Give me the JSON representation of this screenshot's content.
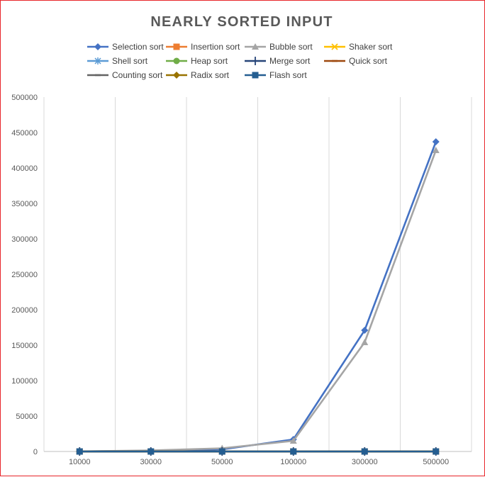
{
  "chart_data": {
    "type": "line",
    "title": "NEARLY SORTED INPUT",
    "xlabel": "",
    "ylabel": "",
    "categories": [
      "10000",
      "30000",
      "50000",
      "100000",
      "300000",
      "500000"
    ],
    "ylim": [
      0,
      500000
    ],
    "yticks": [
      0,
      50000,
      100000,
      150000,
      200000,
      250000,
      300000,
      350000,
      400000,
      450000,
      500000
    ],
    "grid": "vertical",
    "legend_position": "top",
    "series": [
      {
        "name": "Selection sort",
        "color": "#4472c4",
        "marker": "diamond",
        "values": [
          100,
          900,
          3000,
          17000,
          171000,
          437000
        ]
      },
      {
        "name": "Insertion sort",
        "color": "#ed7d31",
        "marker": "square",
        "values": [
          0,
          0,
          0,
          0,
          0,
          1
        ]
      },
      {
        "name": "Bubble sort",
        "color": "#a5a5a5",
        "marker": "triangle",
        "values": [
          150,
          1400,
          4500,
          15000,
          154000,
          425000
        ]
      },
      {
        "name": "Shaker sort",
        "color": "#ffc000",
        "marker": "x",
        "values": [
          0,
          0,
          0,
          0,
          1,
          2
        ]
      },
      {
        "name": "Shell sort",
        "color": "#5b9bd5",
        "marker": "star",
        "values": [
          0,
          1,
          2,
          4,
          15,
          25
        ]
      },
      {
        "name": "Heap sort",
        "color": "#70ad47",
        "marker": "circle",
        "values": [
          2,
          6,
          10,
          22,
          70,
          120
        ]
      },
      {
        "name": "Merge sort",
        "color": "#264478",
        "marker": "plus",
        "values": [
          1,
          4,
          7,
          15,
          50,
          85
        ]
      },
      {
        "name": "Quick sort",
        "color": "#9e480e",
        "marker": "dash",
        "values": [
          0,
          2,
          3,
          6,
          20,
          35
        ]
      },
      {
        "name": "Counting sort",
        "color": "#636363",
        "marker": "dash",
        "values": [
          0,
          0,
          0,
          1,
          2,
          4
        ]
      },
      {
        "name": "Radix sort",
        "color": "#997300",
        "marker": "diamond",
        "values": [
          0,
          1,
          2,
          4,
          12,
          20
        ]
      },
      {
        "name": "Flash sort",
        "color": "#255e91",
        "marker": "square",
        "values": [
          0,
          0,
          1,
          2,
          5,
          9
        ]
      }
    ]
  }
}
